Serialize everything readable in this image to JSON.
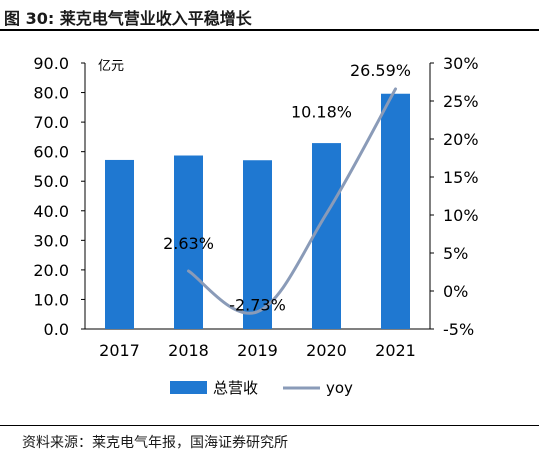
{
  "figure": {
    "title": "图 30:  莱克电气营业收入平稳增长",
    "source": "资料来源：莱克电气年报，国海证券研究所"
  },
  "chart_data": {
    "type": "bar",
    "categories": [
      "2017",
      "2018",
      "2019",
      "2020",
      "2021"
    ],
    "series": [
      {
        "name": "总营收",
        "type": "bar",
        "axis": "left",
        "color": "#1f78d1",
        "values": [
          57.2,
          58.7,
          57.1,
          62.9,
          79.6
        ]
      },
      {
        "name": "yoy",
        "type": "line",
        "axis": "right",
        "color": "#8a9bb8",
        "values": [
          null,
          2.63,
          -2.73,
          10.18,
          26.59
        ],
        "labels": [
          "",
          "2.63%",
          "-2.73%",
          "10.18%",
          "26.59%"
        ]
      }
    ],
    "left_axis": {
      "unit": "亿元",
      "ylim": [
        0,
        90
      ],
      "ticks": [
        "0.0",
        "10.0",
        "20.0",
        "30.0",
        "40.0",
        "50.0",
        "60.0",
        "70.0",
        "80.0",
        "90.0"
      ]
    },
    "right_axis": {
      "ylim": [
        -5,
        30
      ],
      "ticks": [
        "-5%",
        "0%",
        "5%",
        "10%",
        "15%",
        "20%",
        "25%",
        "30%"
      ]
    },
    "grid": false,
    "legend_position": "bottom"
  }
}
